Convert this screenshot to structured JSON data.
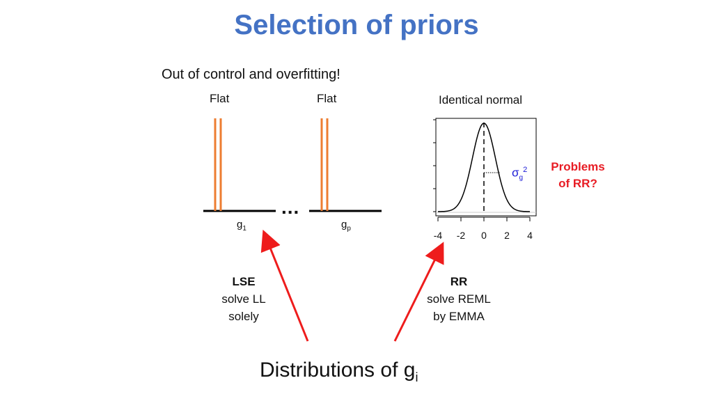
{
  "title": "Selection of priors",
  "subtitle": "Out of control and overfitting!",
  "colors": {
    "title": "#4472c4",
    "flat": "#ed7d31",
    "arrow": "#ee1c1c",
    "problem": "#e81c24",
    "sigma": "#1a1ad6"
  },
  "left_panel": {
    "flat_label_1": "Flat",
    "flat_label_2": "Flat",
    "ellipsis": "...",
    "g1_base": "g",
    "g1_sub": "1",
    "gp_base": "g",
    "gp_sub": "p"
  },
  "right_panel": {
    "title": "Identical normal",
    "sigma_base": "σ",
    "sigma_sub": "g",
    "sigma_sup": "2",
    "x_ticks": [
      "-4",
      "-2",
      "0",
      "2",
      "4"
    ],
    "x_range": [
      -4,
      4
    ]
  },
  "problems": {
    "line1": "Problems",
    "line2": "of RR?"
  },
  "lse": {
    "title": "LSE",
    "line1": "solve LL",
    "line2": "solely"
  },
  "rr": {
    "title": "RR",
    "line1": "solve REML",
    "line2": "by EMMA"
  },
  "bottom": {
    "text": "Distributions of g",
    "sub": "i"
  }
}
